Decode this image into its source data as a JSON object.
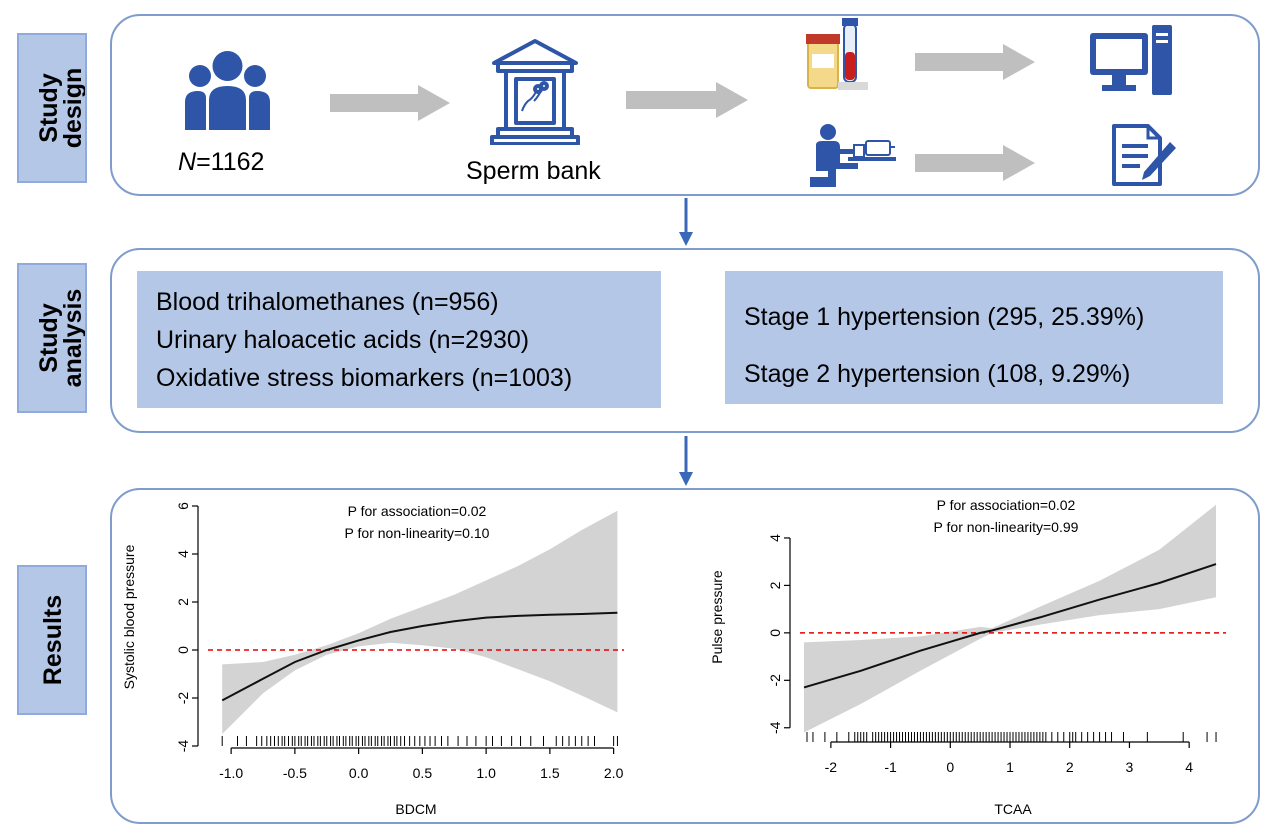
{
  "sections": {
    "design": {
      "line1": "Study",
      "line2": "design"
    },
    "analysis": {
      "line1": "Study",
      "line2": "analysis"
    },
    "results": {
      "line1": "Results"
    }
  },
  "design": {
    "participants_var": "N",
    "participants_value": "=1162",
    "sperm_bank": "Sperm bank"
  },
  "analysis": {
    "exposures": [
      "Blood trihalomethanes (n=956)",
      "Urinary haloacetic acids (n=2930)",
      "Oxidative stress biomarkers (n=1003)"
    ],
    "outcomes": [
      "Stage 1 hypertension (295, 25.39%)",
      "Stage 2 hypertension (108, 9.29%)"
    ]
  },
  "colors": {
    "icon_blue": "#2e55a8",
    "label_fill": "#b4c7e7",
    "panel_border": "#7f9ccd",
    "arrow_gray": "#bfbfbf",
    "ci_gray": "#d3d3d3",
    "reference_red": "#e60000"
  },
  "icons": [
    "people-icon",
    "sperm-bank-icon",
    "sample-tubes-icon",
    "computer-icon",
    "blood-pressure-icon",
    "questionnaire-icon"
  ],
  "chart_data": [
    {
      "type": "line",
      "xlabel": "BDCM",
      "ylabel": "Systolic blood pressure",
      "annotation1": "P for association=0.02",
      "annotation2": "P for non-linearity=0.10",
      "xticks": [
        "-1.0",
        "-0.5",
        "0.0",
        "0.5",
        "1.0",
        "1.5",
        "2.0"
      ],
      "yticks": [
        "-4",
        "-2",
        "0",
        "2",
        "4",
        "6"
      ],
      "xlim": [
        -1.15,
        2.05
      ],
      "ylim": [
        -4,
        6
      ],
      "reference_y": 0,
      "series": [
        {
          "x": [
            -1.07,
            -0.75,
            -0.5,
            -0.25,
            0.0,
            0.25,
            0.5,
            0.75,
            1.0,
            1.25,
            1.5,
            1.75,
            2.03
          ],
          "y": [
            -2.1,
            -1.2,
            -0.5,
            0.0,
            0.4,
            0.75,
            1.0,
            1.2,
            1.35,
            1.42,
            1.47,
            1.5,
            1.55
          ],
          "lower": [
            -3.5,
            -1.8,
            -0.85,
            -0.2,
            0.15,
            0.3,
            0.2,
            0.05,
            -0.3,
            -0.8,
            -1.3,
            -1.9,
            -2.6
          ],
          "upper": [
            -0.6,
            -0.5,
            -0.2,
            0.2,
            0.7,
            1.3,
            1.8,
            2.3,
            2.9,
            3.5,
            4.2,
            5.0,
            5.8
          ]
        }
      ],
      "rug": [
        -1.07,
        -0.95,
        -0.88,
        -0.8,
        -0.76,
        -0.72,
        -0.69,
        -0.66,
        -0.63,
        -0.6,
        -0.58,
        -0.55,
        -0.52,
        -0.5,
        -0.47,
        -0.45,
        -0.42,
        -0.4,
        -0.37,
        -0.35,
        -0.32,
        -0.3,
        -0.27,
        -0.25,
        -0.22,
        -0.2,
        -0.17,
        -0.15,
        -0.12,
        -0.1,
        -0.07,
        -0.05,
        -0.02,
        0.0,
        0.03,
        0.05,
        0.08,
        0.1,
        0.13,
        0.15,
        0.18,
        0.2,
        0.23,
        0.25,
        0.28,
        0.3,
        0.33,
        0.36,
        0.4,
        0.44,
        0.48,
        0.52,
        0.56,
        0.6,
        0.65,
        0.7,
        0.78,
        0.85,
        0.92,
        1.0,
        1.05,
        1.12,
        1.2,
        1.27,
        1.35,
        1.45,
        1.55,
        1.6,
        1.65,
        1.7,
        1.75,
        1.8,
        1.85,
        2.0,
        2.03
      ]
    },
    {
      "type": "line",
      "xlabel": "TCAA",
      "ylabel": "Pulse pressure",
      "annotation1": "P for association=0.02",
      "annotation2": "P for non-linearity=0.99",
      "xticks": [
        "-2",
        "-1",
        "0",
        "1",
        "2",
        "3",
        "4"
      ],
      "yticks": [
        "-4",
        "-2",
        "0",
        "2",
        "4"
      ],
      "xlim": [
        -2.45,
        4.55
      ],
      "ylim": [
        -4.6,
        5.6
      ],
      "reference_y": 0,
      "series": [
        {
          "x": [
            -2.45,
            -1.5,
            -0.5,
            0.5,
            0.7,
            1.5,
            2.5,
            3.5,
            4.45
          ],
          "y": [
            -2.3,
            -1.6,
            -0.75,
            0.0,
            0.1,
            0.65,
            1.4,
            2.1,
            2.9
          ],
          "lower": [
            -4.2,
            -3.0,
            -1.6,
            -0.25,
            0.0,
            0.35,
            0.75,
            1.0,
            1.5
          ],
          "upper": [
            -0.4,
            -0.3,
            -0.15,
            0.25,
            0.2,
            1.1,
            2.2,
            3.5,
            5.4
          ]
        }
      ],
      "rug": [
        -2.4,
        -2.3,
        -2.1,
        -1.9,
        -1.7,
        -1.6,
        -1.55,
        -1.5,
        -1.45,
        -1.4,
        -1.3,
        -1.25,
        -1.2,
        -1.15,
        -1.1,
        -1.05,
        -1.0,
        -0.95,
        -0.9,
        -0.85,
        -0.8,
        -0.75,
        -0.7,
        -0.65,
        -0.6,
        -0.55,
        -0.5,
        -0.45,
        -0.4,
        -0.35,
        -0.3,
        -0.25,
        -0.2,
        -0.15,
        -0.1,
        -0.05,
        0.0,
        0.05,
        0.1,
        0.15,
        0.2,
        0.25,
        0.3,
        0.35,
        0.4,
        0.45,
        0.5,
        0.55,
        0.6,
        0.65,
        0.7,
        0.75,
        0.8,
        0.85,
        0.9,
        0.95,
        1.0,
        1.05,
        1.1,
        1.15,
        1.2,
        1.25,
        1.3,
        1.35,
        1.4,
        1.45,
        1.5,
        1.55,
        1.6,
        1.7,
        1.8,
        1.9,
        2.0,
        2.05,
        2.1,
        2.2,
        2.3,
        2.4,
        2.5,
        2.6,
        2.7,
        2.9,
        3.3,
        3.9,
        4.3,
        4.45
      ]
    }
  ]
}
